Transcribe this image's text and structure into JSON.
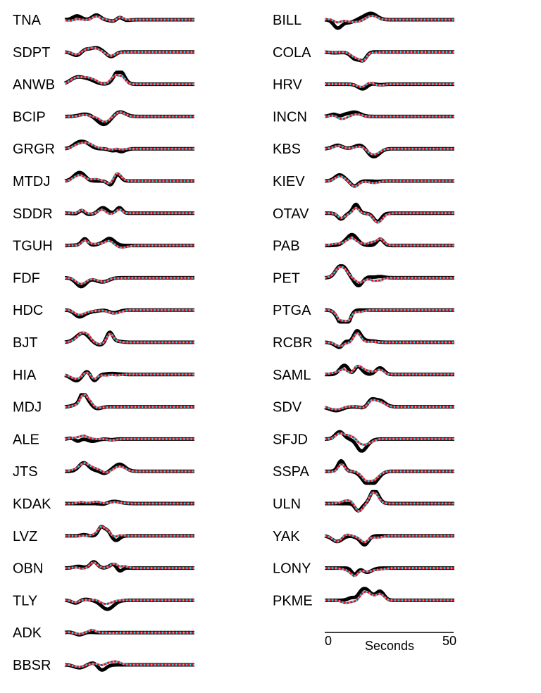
{
  "chart_data": {
    "type": "line",
    "title": "",
    "legend": "none",
    "grid": false,
    "colors": {
      "observed": "#000000",
      "synthetic_a": "#e0141e",
      "synthetic_b": "#40c8e0"
    },
    "xaxis": {
      "label": "Seconds",
      "range": [
        0,
        50
      ],
      "tick_labels": [
        "0",
        "50"
      ]
    },
    "columns": [
      {
        "stations": [
          "TNA",
          "SDPT",
          "ANWB",
          "BCIP",
          "GRGR",
          "MTDJ",
          "SDDR",
          "TGUH",
          "FDF",
          "HDC",
          "BJT",
          "HIA",
          "MDJ",
          "ALE",
          "JTS",
          "KDAK",
          "LVZ",
          "OBN",
          "TLY",
          "ADK",
          "BBSR"
        ]
      },
      {
        "stations": [
          "BILL",
          "COLA",
          "HRV",
          "INCN",
          "KBS",
          "KIEV",
          "OTAV",
          "PAB",
          "PET",
          "PTGA",
          "RCBR",
          "SAML",
          "SDV",
          "SFJD",
          "SSPA",
          "ULN",
          "YAK",
          "LONY",
          "PKME"
        ]
      }
    ]
  }
}
